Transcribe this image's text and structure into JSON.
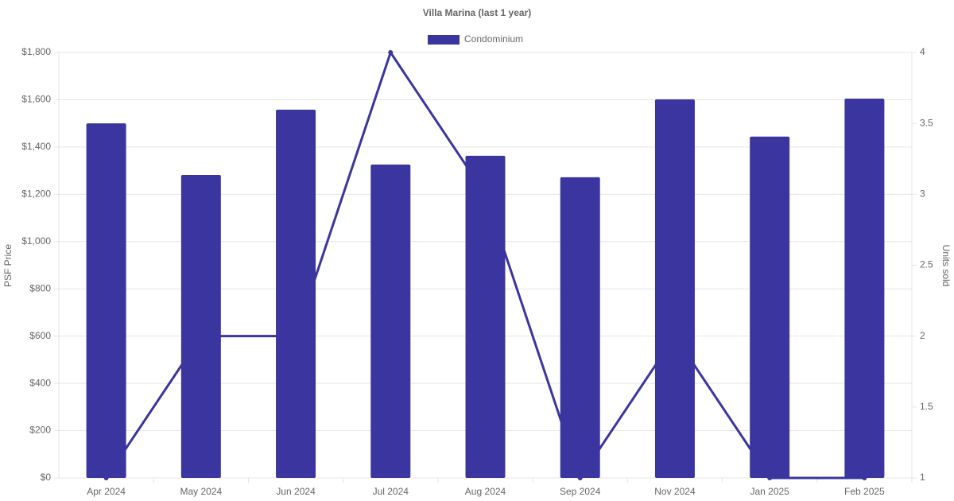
{
  "chart_data": {
    "type": "combo",
    "title": "Villa Marina (last 1 year)",
    "y_label": "PSF Price",
    "y2_label": "Units sold",
    "categories": [
      "Apr 2024",
      "May 2024",
      "Jun 2024",
      "Jul 2024",
      "Aug 2024",
      "Sep 2024",
      "Nov 2024",
      "Jan 2025",
      "Feb 2025"
    ],
    "series": [
      {
        "name": "Condominium",
        "type": "bar",
        "color": "#3b35a0",
        "values": [
          1500,
          1282,
          1558,
          1326,
          1363,
          1272,
          1602,
          1444,
          1605
        ]
      },
      {
        "type": "line",
        "axis": "y2",
        "color": "#3b35a0",
        "values": [
          1,
          2,
          2,
          4,
          3,
          1,
          2,
          1,
          1
        ]
      }
    ],
    "ylim": [
      0,
      1800
    ],
    "yticks": [
      {
        "value": 0,
        "label": "$0"
      },
      {
        "value": 200,
        "label": "$200"
      },
      {
        "value": 400,
        "label": "$400"
      },
      {
        "value": 600,
        "label": "$600"
      },
      {
        "value": 800,
        "label": "$800"
      },
      {
        "value": 1000,
        "label": "$1,000"
      },
      {
        "value": 1200,
        "label": "$1,200"
      },
      {
        "value": 1400,
        "label": "$1,400"
      },
      {
        "value": 1600,
        "label": "$1,600"
      },
      {
        "value": 1800,
        "label": "$1,800"
      }
    ],
    "y2lim": [
      1,
      4
    ],
    "y2ticks": [
      1,
      1.5,
      2,
      2.5,
      3,
      3.5,
      4
    ],
    "grid": true,
    "legend": "top"
  }
}
